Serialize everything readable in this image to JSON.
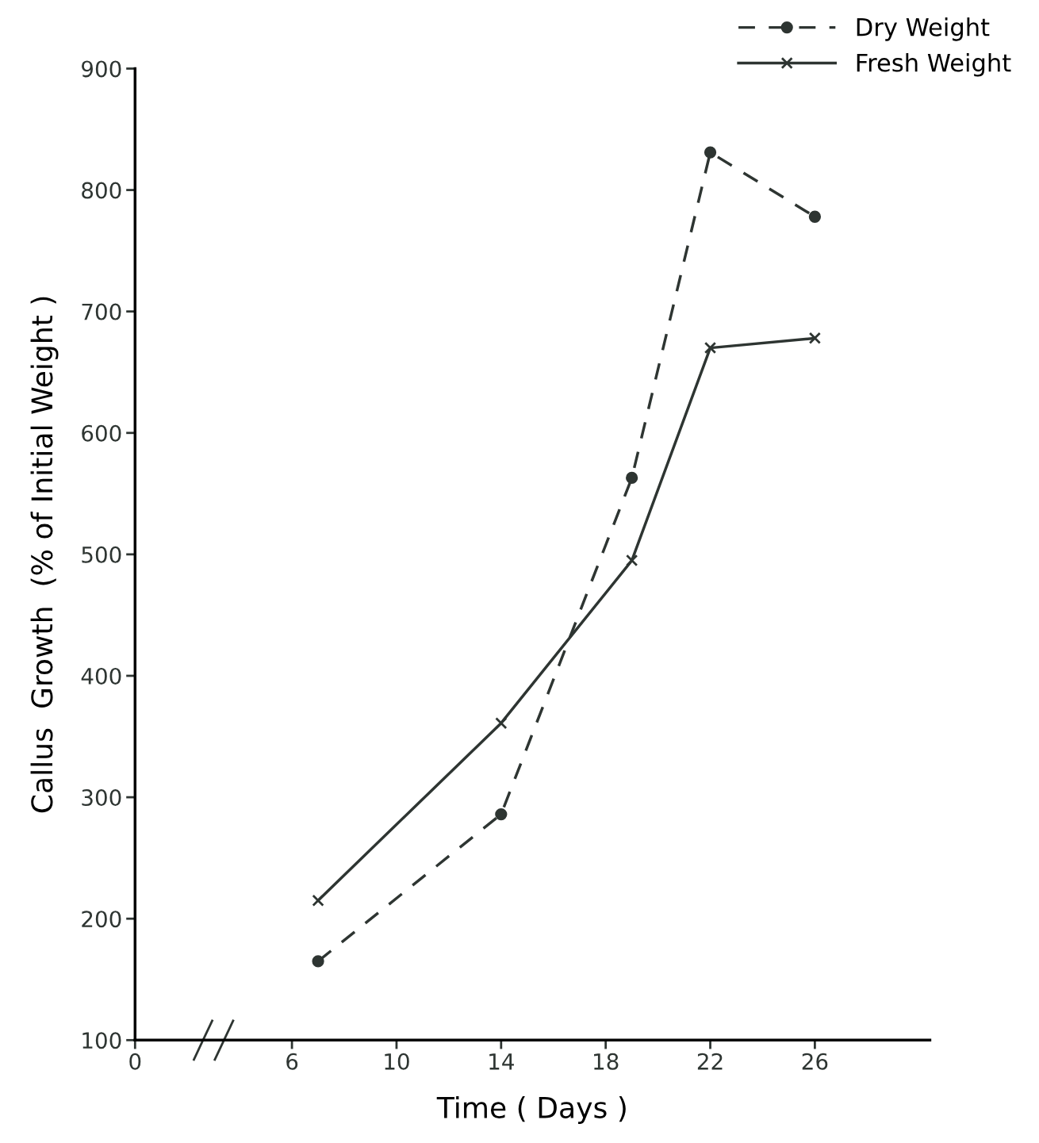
{
  "chart_data": {
    "type": "line",
    "xlabel": "Time ( Days )",
    "ylabel": "Callus  Growth  (% of Initial Weight )",
    "x": [
      7,
      14,
      19,
      22,
      26
    ],
    "series": [
      {
        "name": "Dry Weight",
        "color": "#2e3532",
        "values": [
          165,
          286,
          563,
          831,
          778
        ],
        "line_style": "dashed",
        "marker": "circle"
      },
      {
        "name": "Fresh Weight",
        "color": "#2e3532",
        "values": [
          215,
          361,
          495,
          670,
          678
        ],
        "line_style": "solid",
        "marker": "cross"
      }
    ],
    "xlim": [
      0,
      30.4
    ],
    "xticks": [
      0,
      6,
      10,
      14,
      18,
      22,
      26
    ],
    "ylim": [
      100,
      900
    ],
    "yticks": [
      100,
      200,
      300,
      400,
      500,
      600,
      700,
      800,
      900
    ],
    "grid": false,
    "legend": "top right"
  }
}
